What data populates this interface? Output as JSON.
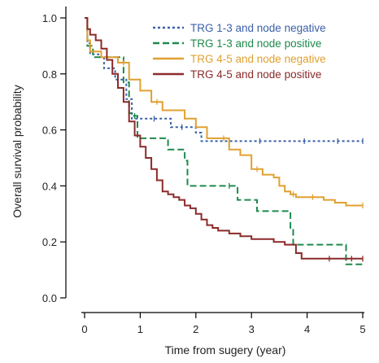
{
  "chart_data": {
    "type": "line",
    "xlabel": "Time from sugery (year)",
    "ylabel": "Overall survival probability",
    "xlim": [
      0,
      5
    ],
    "ylim": [
      0,
      1
    ],
    "x_ticks": [
      "0",
      "1",
      "2",
      "3",
      "4",
      "5"
    ],
    "y_ticks": [
      "0.0",
      "0.2",
      "0.4",
      "0.6",
      "0.8",
      "1.0"
    ],
    "grid": false,
    "legend_position": "top-right",
    "series": [
      {
        "name": "TRG 1-3 and node negative",
        "color": "#3a5fa8",
        "dash": "dotted",
        "points": [
          [
            0,
            1.0
          ],
          [
            0.05,
            0.91
          ],
          [
            0.1,
            0.87
          ],
          [
            0.25,
            0.86
          ],
          [
            0.35,
            0.82
          ],
          [
            0.55,
            0.78
          ],
          [
            0.75,
            0.71
          ],
          [
            0.85,
            0.64
          ],
          [
            1.45,
            0.64
          ],
          [
            1.55,
            0.61
          ],
          [
            2.0,
            0.59
          ],
          [
            2.1,
            0.56
          ],
          [
            5.0,
            0.56
          ]
        ],
        "censor": [
          1.25,
          1.75,
          3.15,
          3.95,
          4.55,
          5.0
        ]
      },
      {
        "name": "TRG 1-3 and node positive",
        "color": "#1e8a4c",
        "dash": "dashed",
        "points": [
          [
            0,
            1.0
          ],
          [
            0.05,
            0.9
          ],
          [
            0.15,
            0.86
          ],
          [
            0.7,
            0.77
          ],
          [
            0.8,
            0.66
          ],
          [
            0.85,
            0.65
          ],
          [
            0.95,
            0.57
          ],
          [
            1.45,
            0.57
          ],
          [
            1.5,
            0.53
          ],
          [
            1.8,
            0.49
          ],
          [
            1.85,
            0.4
          ],
          [
            2.45,
            0.4
          ],
          [
            2.75,
            0.35
          ],
          [
            3.05,
            0.35
          ],
          [
            3.1,
            0.31
          ],
          [
            3.6,
            0.31
          ],
          [
            3.7,
            0.25
          ],
          [
            3.75,
            0.19
          ],
          [
            4.65,
            0.19
          ],
          [
            4.7,
            0.12
          ],
          [
            5.0,
            0.12
          ]
        ],
        "censor": [
          0.9,
          2.6
        ]
      },
      {
        "name": "TRG 4-5 and node negative",
        "color": "#e0a030",
        "dash": "solid",
        "points": [
          [
            0,
            1.0
          ],
          [
            0.05,
            0.92
          ],
          [
            0.1,
            0.88
          ],
          [
            0.3,
            0.86
          ],
          [
            0.6,
            0.84
          ],
          [
            0.8,
            0.78
          ],
          [
            1.0,
            0.74
          ],
          [
            1.2,
            0.7
          ],
          [
            1.4,
            0.67
          ],
          [
            1.8,
            0.64
          ],
          [
            2.0,
            0.61
          ],
          [
            2.2,
            0.57
          ],
          [
            2.6,
            0.53
          ],
          [
            2.8,
            0.51
          ],
          [
            3.0,
            0.46
          ],
          [
            3.2,
            0.44
          ],
          [
            3.4,
            0.43
          ],
          [
            3.5,
            0.4
          ],
          [
            3.6,
            0.38
          ],
          [
            3.7,
            0.37
          ],
          [
            3.8,
            0.36
          ],
          [
            4.2,
            0.36
          ],
          [
            4.3,
            0.35
          ],
          [
            4.5,
            0.34
          ],
          [
            4.7,
            0.33
          ],
          [
            5.0,
            0.33
          ]
        ],
        "censor": [
          0.7,
          1.3,
          2.5,
          3.1,
          3.75,
          4.1,
          5.0
        ]
      },
      {
        "name": "TRG 4-5 and node positive",
        "color": "#8b2a2a",
        "dash": "solid",
        "points": [
          [
            0,
            1.0
          ],
          [
            0.05,
            0.96
          ],
          [
            0.1,
            0.94
          ],
          [
            0.2,
            0.92
          ],
          [
            0.3,
            0.89
          ],
          [
            0.4,
            0.85
          ],
          [
            0.5,
            0.8
          ],
          [
            0.6,
            0.75
          ],
          [
            0.7,
            0.7
          ],
          [
            0.8,
            0.63
          ],
          [
            0.9,
            0.58
          ],
          [
            1.0,
            0.54
          ],
          [
            1.1,
            0.5
          ],
          [
            1.2,
            0.46
          ],
          [
            1.3,
            0.42
          ],
          [
            1.4,
            0.38
          ],
          [
            1.5,
            0.37
          ],
          [
            1.6,
            0.36
          ],
          [
            1.7,
            0.35
          ],
          [
            1.8,
            0.33
          ],
          [
            1.9,
            0.32
          ],
          [
            2.0,
            0.3
          ],
          [
            2.1,
            0.28
          ],
          [
            2.2,
            0.26
          ],
          [
            2.3,
            0.25
          ],
          [
            2.4,
            0.24
          ],
          [
            2.6,
            0.23
          ],
          [
            2.8,
            0.22
          ],
          [
            3.0,
            0.21
          ],
          [
            3.2,
            0.21
          ],
          [
            3.4,
            0.2
          ],
          [
            3.6,
            0.19
          ],
          [
            3.8,
            0.16
          ],
          [
            3.9,
            0.14
          ],
          [
            4.2,
            0.14
          ],
          [
            5.0,
            0.14
          ]
        ],
        "censor": [
          4.4,
          4.8,
          5.0
        ]
      }
    ]
  }
}
